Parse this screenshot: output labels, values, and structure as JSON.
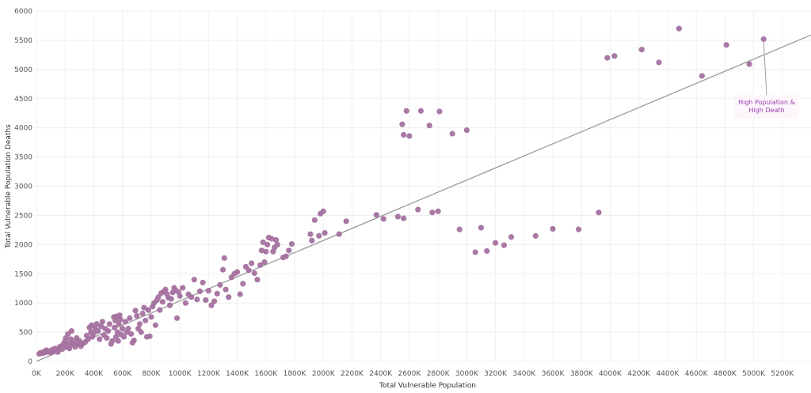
{
  "chart_data": {
    "type": "scatter",
    "xlabel": "Total Vulnerable Population",
    "ylabel": "Total Vulnerable Population Deaths",
    "xlim": [
      0,
      5400000
    ],
    "ylim": [
      0,
      6000
    ],
    "x_ticks": [
      0,
      200000,
      400000,
      600000,
      800000,
      1000000,
      1200000,
      1400000,
      1600000,
      1800000,
      2000000,
      2200000,
      2400000,
      2600000,
      2800000,
      3000000,
      3200000,
      3400000,
      3600000,
      3800000,
      4000000,
      4200000,
      4400000,
      4600000,
      4800000,
      5000000,
      5200000
    ],
    "x_tick_labels": [
      "0K",
      "200K",
      "400K",
      "600K",
      "800K",
      "1000K",
      "1200K",
      "1400K",
      "1600K",
      "1800K",
      "2000K",
      "2200K",
      "2400K",
      "2600K",
      "2800K",
      "3000K",
      "3200K",
      "3400K",
      "3600K",
      "3800K",
      "4000K",
      "4200K",
      "4400K",
      "4600K",
      "4800K",
      "5000K",
      "5200K"
    ],
    "y_ticks": [
      0,
      500,
      1000,
      1500,
      2000,
      2500,
      3000,
      3500,
      4000,
      4500,
      5000,
      5500,
      6000
    ],
    "y_tick_labels": [
      "0",
      "500",
      "1000",
      "1500",
      "2000",
      "2500",
      "3000",
      "3500",
      "4000",
      "4500",
      "5000",
      "5500",
      "6000"
    ],
    "grid": true,
    "trend_line": {
      "x": [
        0,
        5400000
      ],
      "y": [
        0,
        5590
      ]
    },
    "annotation": {
      "lines": [
        "High Population &",
        "High Death"
      ],
      "point": [
        5070000,
        5520
      ]
    },
    "colors": {
      "point": "#a4719f",
      "trend": "#9b9b9b",
      "annotation_text": "#9b38b0",
      "annotation_bg": "#fdf7fb",
      "grid": "#ececec"
    },
    "points": [
      [
        20000,
        130
      ],
      [
        30000,
        150
      ],
      [
        45000,
        140
      ],
      [
        55000,
        170
      ],
      [
        60000,
        155
      ],
      [
        70000,
        190
      ],
      [
        80000,
        160
      ],
      [
        90000,
        175
      ],
      [
        100000,
        150
      ],
      [
        110000,
        200
      ],
      [
        120000,
        170
      ],
      [
        130000,
        220
      ],
      [
        140000,
        190
      ],
      [
        150000,
        160
      ],
      [
        160000,
        240
      ],
      [
        170000,
        260
      ],
      [
        180000,
        210
      ],
      [
        190000,
        300
      ],
      [
        200000,
        350
      ],
      [
        205000,
        400
      ],
      [
        210000,
        250
      ],
      [
        220000,
        470
      ],
      [
        225000,
        300
      ],
      [
        230000,
        220
      ],
      [
        240000,
        380
      ],
      [
        245000,
        520
      ],
      [
        250000,
        290
      ],
      [
        260000,
        330
      ],
      [
        270000,
        250
      ],
      [
        280000,
        400
      ],
      [
        290000,
        300
      ],
      [
        300000,
        350
      ],
      [
        310000,
        260
      ],
      [
        320000,
        300
      ],
      [
        340000,
        330
      ],
      [
        350000,
        440
      ],
      [
        360000,
        380
      ],
      [
        370000,
        580
      ],
      [
        380000,
        500
      ],
      [
        385000,
        620
      ],
      [
        390000,
        420
      ],
      [
        400000,
        480
      ],
      [
        410000,
        560
      ],
      [
        420000,
        640
      ],
      [
        430000,
        520
      ],
      [
        440000,
        380
      ],
      [
        450000,
        600
      ],
      [
        460000,
        680
      ],
      [
        470000,
        450
      ],
      [
        480000,
        560
      ],
      [
        490000,
        400
      ],
      [
        500000,
        520
      ],
      [
        510000,
        640
      ],
      [
        520000,
        300
      ],
      [
        530000,
        350
      ],
      [
        540000,
        760
      ],
      [
        545000,
        580
      ],
      [
        550000,
        700
      ],
      [
        555000,
        420
      ],
      [
        560000,
        770
      ],
      [
        565000,
        500
      ],
      [
        570000,
        350
      ],
      [
        575000,
        640
      ],
      [
        580000,
        790
      ],
      [
        585000,
        720
      ],
      [
        590000,
        460
      ],
      [
        600000,
        560
      ],
      [
        610000,
        420
      ],
      [
        620000,
        680
      ],
      [
        630000,
        500
      ],
      [
        640000,
        560
      ],
      [
        650000,
        740
      ],
      [
        660000,
        470
      ],
      [
        670000,
        320
      ],
      [
        680000,
        360
      ],
      [
        690000,
        870
      ],
      [
        700000,
        780
      ],
      [
        710000,
        560
      ],
      [
        720000,
        640
      ],
      [
        730000,
        500
      ],
      [
        740000,
        820
      ],
      [
        750000,
        920
      ],
      [
        760000,
        700
      ],
      [
        770000,
        420
      ],
      [
        780000,
        880
      ],
      [
        790000,
        430
      ],
      [
        800000,
        760
      ],
      [
        810000,
        940
      ],
      [
        820000,
        1000
      ],
      [
        830000,
        620
      ],
      [
        840000,
        1050
      ],
      [
        850000,
        1100
      ],
      [
        860000,
        880
      ],
      [
        870000,
        1170
      ],
      [
        880000,
        1020
      ],
      [
        890000,
        1200
      ],
      [
        900000,
        1230
      ],
      [
        910000,
        1150
      ],
      [
        920000,
        1090
      ],
      [
        930000,
        960
      ],
      [
        940000,
        1070
      ],
      [
        950000,
        1180
      ],
      [
        960000,
        1260
      ],
      [
        970000,
        1220
      ],
      [
        980000,
        740
      ],
      [
        990000,
        1190
      ],
      [
        1000000,
        1120
      ],
      [
        1020000,
        1260
      ],
      [
        1040000,
        1000
      ],
      [
        1060000,
        1150
      ],
      [
        1080000,
        1100
      ],
      [
        1100000,
        1400
      ],
      [
        1120000,
        1060
      ],
      [
        1140000,
        1200
      ],
      [
        1160000,
        1350
      ],
      [
        1180000,
        1050
      ],
      [
        1200000,
        1210
      ],
      [
        1220000,
        960
      ],
      [
        1240000,
        1030
      ],
      [
        1260000,
        1160
      ],
      [
        1280000,
        1310
      ],
      [
        1300000,
        1570
      ],
      [
        1310000,
        1770
      ],
      [
        1320000,
        1230
      ],
      [
        1340000,
        1100
      ],
      [
        1360000,
        1440
      ],
      [
        1380000,
        1500
      ],
      [
        1400000,
        1530
      ],
      [
        1420000,
        1150
      ],
      [
        1440000,
        1330
      ],
      [
        1460000,
        1620
      ],
      [
        1480000,
        1560
      ],
      [
        1500000,
        1680
      ],
      [
        1520000,
        1510
      ],
      [
        1540000,
        1400
      ],
      [
        1560000,
        1650
      ],
      [
        1570000,
        1900
      ],
      [
        1580000,
        2040
      ],
      [
        1590000,
        1700
      ],
      [
        1600000,
        1880
      ],
      [
        1610000,
        2000
      ],
      [
        1620000,
        2120
      ],
      [
        1640000,
        2100
      ],
      [
        1650000,
        1880
      ],
      [
        1660000,
        1950
      ],
      [
        1670000,
        2080
      ],
      [
        1680000,
        2000
      ],
      [
        1720000,
        1780
      ],
      [
        1740000,
        1800
      ],
      [
        1760000,
        1900
      ],
      [
        1780000,
        2010
      ],
      [
        1910000,
        2180
      ],
      [
        1920000,
        2070
      ],
      [
        1940000,
        2420
      ],
      [
        1970000,
        2150
      ],
      [
        1980000,
        2530
      ],
      [
        2000000,
        2570
      ],
      [
        2010000,
        2200
      ],
      [
        2110000,
        2180
      ],
      [
        2160000,
        2400
      ],
      [
        2370000,
        2510
      ],
      [
        2420000,
        2440
      ],
      [
        2520000,
        2480
      ],
      [
        2560000,
        2450
      ],
      [
        2660000,
        2600
      ],
      [
        2760000,
        2550
      ],
      [
        2800000,
        2570
      ],
      [
        2950000,
        2260
      ],
      [
        3060000,
        1870
      ],
      [
        3100000,
        2290
      ],
      [
        3140000,
        1890
      ],
      [
        3200000,
        2030
      ],
      [
        3260000,
        1990
      ],
      [
        3310000,
        2130
      ],
      [
        3480000,
        2150
      ],
      [
        3600000,
        2270
      ],
      [
        3780000,
        2260
      ],
      [
        3920000,
        2550
      ],
      [
        2550000,
        4060
      ],
      [
        2560000,
        3880
      ],
      [
        2580000,
        4290
      ],
      [
        2600000,
        3860
      ],
      [
        2680000,
        4290
      ],
      [
        2740000,
        4040
      ],
      [
        2810000,
        4280
      ],
      [
        2900000,
        3900
      ],
      [
        3000000,
        3960
      ],
      [
        3980000,
        5200
      ],
      [
        4030000,
        5230
      ],
      [
        4220000,
        5340
      ],
      [
        4340000,
        5120
      ],
      [
        4480000,
        5700
      ],
      [
        4640000,
        4890
      ],
      [
        4810000,
        5420
      ],
      [
        4970000,
        5090
      ],
      [
        5070000,
        5520
      ]
    ]
  }
}
